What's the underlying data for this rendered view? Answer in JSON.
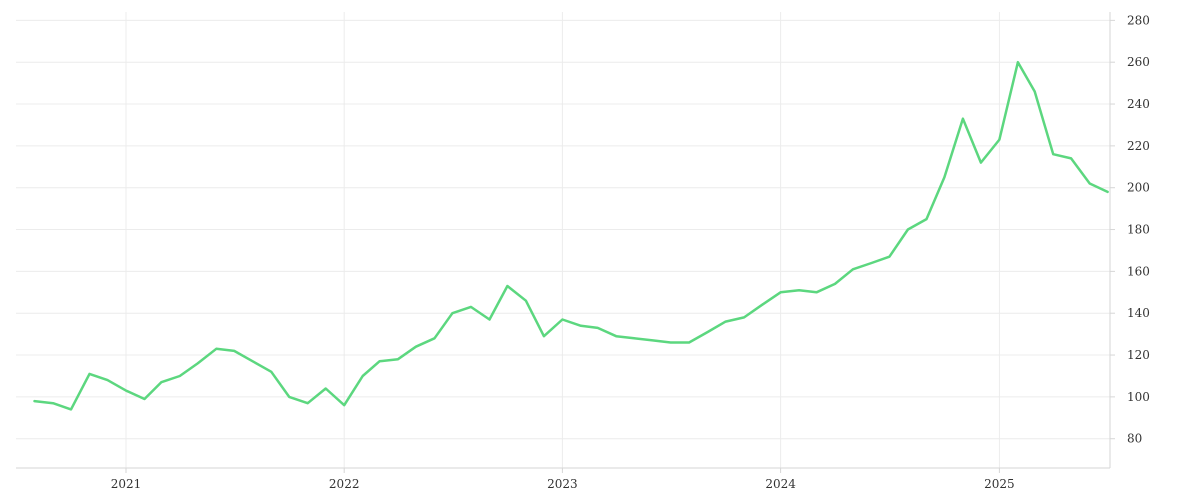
{
  "chart_data": {
    "type": "line",
    "title": "",
    "xlabel": "",
    "ylabel": "",
    "x_tick_labels": [
      "2021",
      "2022",
      "2023",
      "2024",
      "2025"
    ],
    "y_tick_labels": [
      "80",
      "100",
      "120",
      "140",
      "160",
      "180",
      "200",
      "220",
      "240",
      "260",
      "280"
    ],
    "ylim": [
      66,
      284
    ],
    "xlim": [
      "2020-07-01",
      "2025-07-05"
    ],
    "grid": true,
    "legend": "none",
    "y_axis_position": "right",
    "line_color": "#5cd77f",
    "grid_color": "#ececec",
    "series": [
      {
        "x": [
          "2020-08-01",
          "2020-09-01",
          "2020-10-01",
          "2020-11-01",
          "2020-12-01",
          "2021-01-01",
          "2021-02-01",
          "2021-03-01",
          "2021-04-01",
          "2021-05-01",
          "2021-06-01",
          "2021-07-01",
          "2021-08-01",
          "2021-09-01",
          "2021-10-01",
          "2021-11-01",
          "2021-12-01",
          "2022-01-01",
          "2022-02-01",
          "2022-03-01",
          "2022-04-01",
          "2022-05-01",
          "2022-06-01",
          "2022-07-01",
          "2022-08-01",
          "2022-09-01",
          "2022-10-01",
          "2022-11-01",
          "2022-12-01",
          "2023-01-01",
          "2023-02-01",
          "2023-03-01",
          "2023-04-01",
          "2023-05-01",
          "2023-06-01",
          "2023-07-01",
          "2023-08-01",
          "2023-09-01",
          "2023-10-01",
          "2023-11-01",
          "2023-12-01",
          "2024-01-01",
          "2024-02-01",
          "2024-03-01",
          "2024-04-01",
          "2024-05-01",
          "2024-06-01",
          "2024-07-01",
          "2024-08-01",
          "2024-09-01",
          "2024-10-01",
          "2024-11-01",
          "2024-12-01",
          "2025-01-01",
          "2025-02-01",
          "2025-03-01",
          "2025-04-01",
          "2025-05-01",
          "2025-06-01",
          "2025-07-01"
        ],
        "values": [
          98,
          97,
          94,
          111,
          108,
          103,
          99,
          107,
          110,
          116,
          123,
          122,
          117,
          112,
          100,
          97,
          104,
          96,
          110,
          117,
          118,
          124,
          128,
          140,
          143,
          137,
          153,
          146,
          129,
          137,
          134,
          133,
          129,
          128,
          127,
          126,
          126,
          131,
          136,
          138,
          144,
          150,
          151,
          150,
          154,
          161,
          164,
          167,
          180,
          185,
          205,
          233,
          212,
          223,
          260,
          246,
          216,
          214,
          202,
          198
        ]
      }
    ]
  }
}
